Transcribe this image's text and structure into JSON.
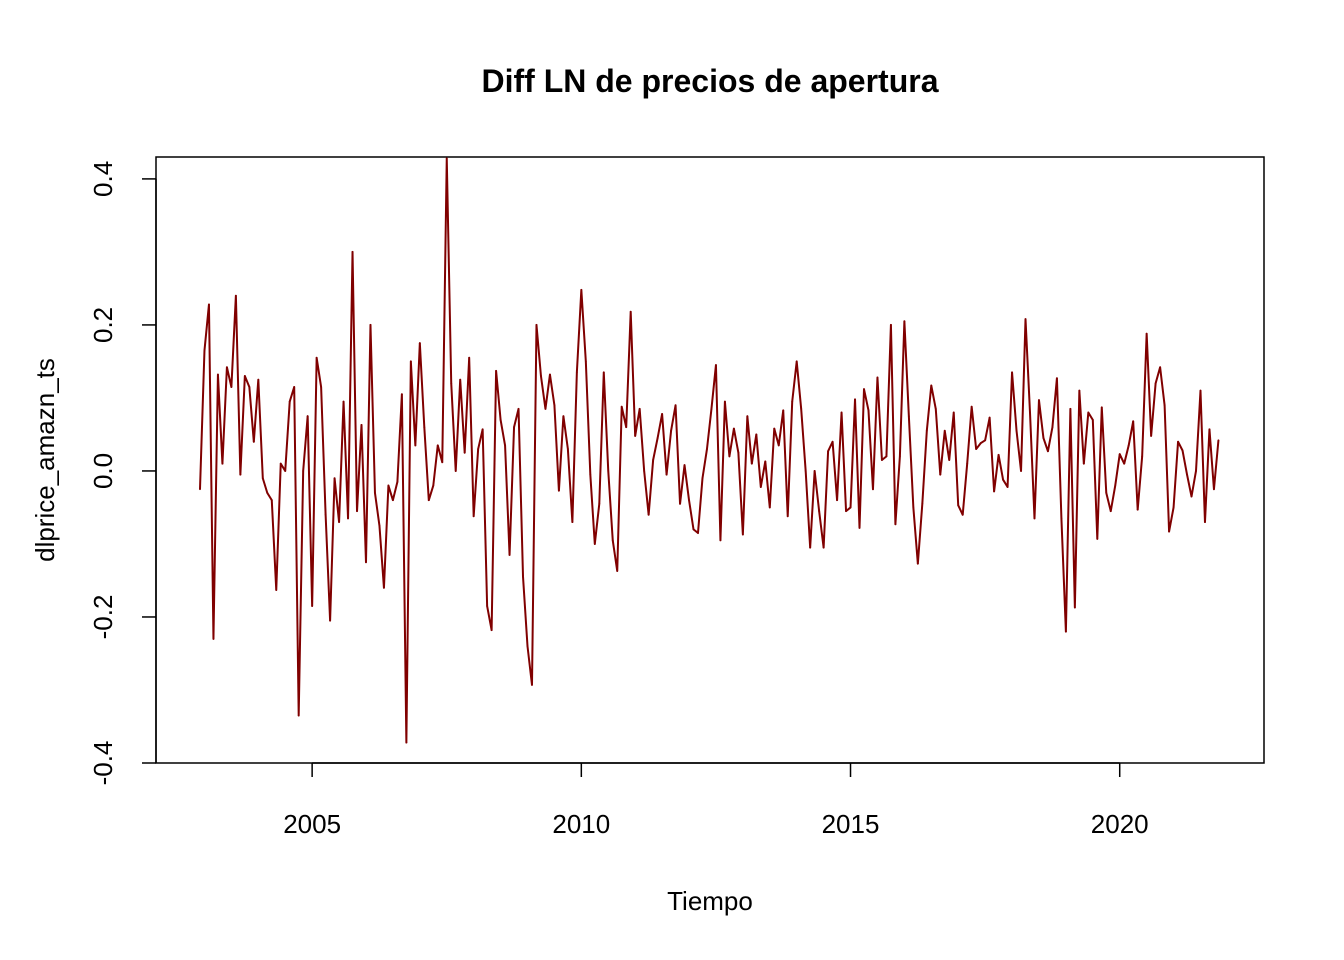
{
  "chart_data": {
    "type": "line",
    "title": "Diff LN de precios de apertura",
    "xlabel": "Tiempo",
    "ylabel": "dlprice_amazn_ts",
    "xlim": [
      2002.1,
      2022.68
    ],
    "ylim": [
      -0.4,
      0.43
    ],
    "x_ticks": [
      2005,
      2010,
      2015,
      2020
    ],
    "x_tick_labels": [
      "2005",
      "2010",
      "2015",
      "2020"
    ],
    "y_ticks": [
      -0.4,
      -0.2,
      0.0,
      0.2,
      0.4
    ],
    "y_tick_labels": [
      "-0.4",
      "-0.2",
      "0.0",
      "0.2",
      "0.4"
    ],
    "grid": false,
    "line_color": "#800000",
    "start": 2002.917,
    "frequency": 12,
    "series": [
      {
        "values": [
          -0.025,
          0.165,
          0.228,
          -0.23,
          0.132,
          0.01,
          0.142,
          0.115,
          0.24,
          -0.005,
          0.13,
          0.115,
          0.04,
          0.125,
          -0.01,
          -0.03,
          -0.04,
          -0.163,
          0.01,
          0.0,
          0.095,
          0.115,
          -0.335,
          0.0,
          0.075,
          -0.185,
          0.155,
          0.115,
          -0.06,
          -0.205,
          -0.01,
          -0.07,
          0.095,
          -0.065,
          0.3,
          -0.055,
          0.063,
          -0.125,
          0.2,
          -0.03,
          -0.075,
          -0.16,
          -0.02,
          -0.04,
          -0.015,
          0.105,
          -0.372,
          0.15,
          0.035,
          0.175,
          0.06,
          -0.04,
          -0.02,
          0.035,
          0.012,
          0.428,
          0.12,
          0.0,
          0.125,
          0.025,
          0.155,
          -0.062,
          0.03,
          0.057,
          -0.185,
          -0.218,
          0.137,
          0.07,
          0.035,
          -0.115,
          0.06,
          0.085,
          -0.145,
          -0.24,
          -0.293,
          0.2,
          0.13,
          0.085,
          0.132,
          0.09,
          -0.027,
          0.075,
          0.03,
          -0.07,
          0.135,
          0.248,
          0.15,
          -0.005,
          -0.1,
          -0.045,
          0.135,
          0.0,
          -0.095,
          -0.137,
          0.088,
          0.06,
          0.218,
          0.048,
          0.085,
          0.0,
          -0.06,
          0.015,
          0.045,
          0.078,
          -0.005,
          0.055,
          0.09,
          -0.045,
          0.008,
          -0.04,
          -0.08,
          -0.085,
          -0.01,
          0.03,
          0.085,
          0.145,
          -0.095,
          0.095,
          0.02,
          0.058,
          0.025,
          -0.087,
          0.075,
          0.01,
          0.05,
          -0.022,
          0.013,
          -0.05,
          0.058,
          0.035,
          0.083,
          -0.062,
          0.095,
          0.15,
          0.085,
          0.0,
          -0.105,
          0.0,
          -0.055,
          -0.105,
          0.027,
          0.04,
          -0.04,
          0.08,
          -0.055,
          -0.05,
          0.098,
          -0.078,
          0.112,
          0.083,
          -0.025,
          0.128,
          0.015,
          0.02,
          0.2,
          -0.073,
          0.02,
          0.205,
          0.075,
          -0.05,
          -0.127,
          -0.045,
          0.055,
          0.117,
          0.085,
          -0.005,
          0.055,
          0.015,
          0.08,
          -0.047,
          -0.06,
          0.01,
          0.088,
          0.03,
          0.038,
          0.042,
          0.073,
          -0.028,
          0.022,
          -0.012,
          -0.022,
          0.135,
          0.055,
          0.0,
          0.208,
          0.08,
          -0.065,
          0.097,
          0.045,
          0.027,
          0.06,
          0.127,
          -0.065,
          -0.22,
          0.085,
          -0.187,
          0.11,
          0.01,
          0.08,
          0.07,
          -0.093,
          0.087,
          -0.03,
          -0.055,
          -0.02,
          0.023,
          0.01,
          0.035,
          0.068,
          -0.053,
          0.02,
          0.188,
          0.048,
          0.12,
          0.142,
          0.09,
          -0.083,
          -0.05,
          0.04,
          0.028,
          -0.005,
          -0.035,
          0.0,
          0.11,
          -0.07,
          0.057,
          -0.025,
          0.042
        ]
      }
    ]
  }
}
